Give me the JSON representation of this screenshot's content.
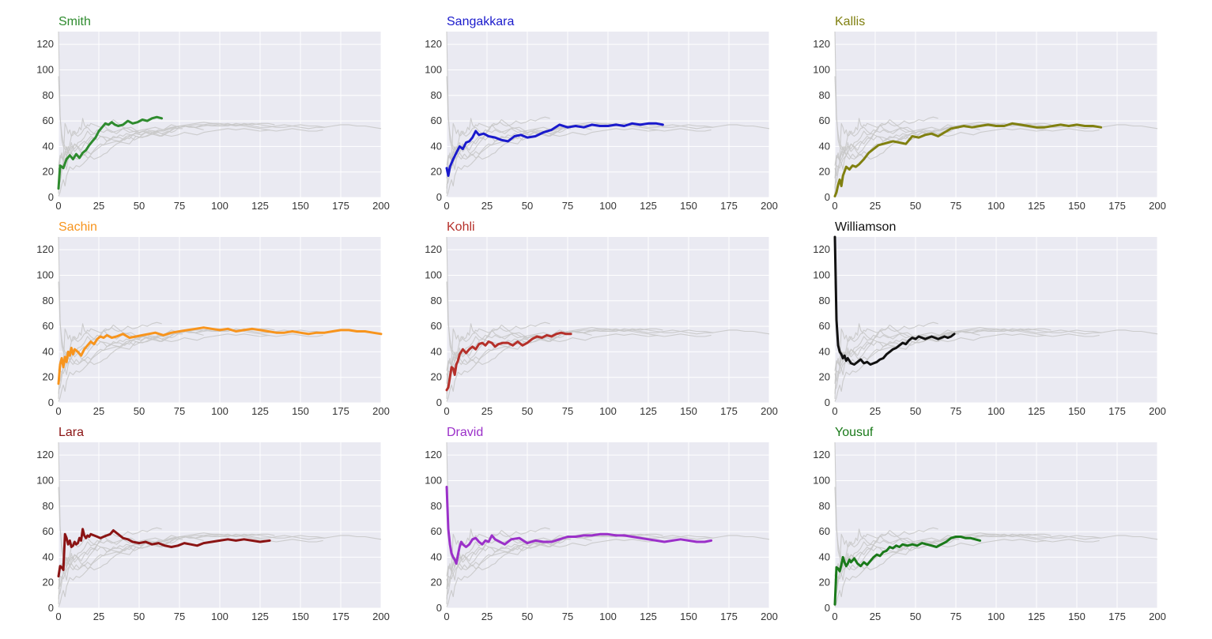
{
  "chart_data": {
    "type": "line",
    "layout": "3x3 small multiples",
    "xlim": [
      0,
      200
    ],
    "ylim": [
      0,
      130
    ],
    "xticks": [
      0,
      25,
      50,
      75,
      100,
      125,
      150,
      175,
      200
    ],
    "yticks": [
      0,
      20,
      40,
      60,
      80,
      100,
      120
    ],
    "grid": true,
    "background_series_color": "#c8c8c8",
    "panels": [
      {
        "name": "Smith",
        "color": "#2e8b2e",
        "x": [
          0,
          1,
          2,
          3,
          5,
          7,
          9,
          11,
          13,
          15,
          17,
          19,
          21,
          23,
          25,
          27,
          29,
          31,
          33,
          35,
          37,
          40,
          43,
          46,
          49,
          52,
          55,
          58,
          61,
          64
        ],
        "y": [
          7,
          25,
          24,
          23,
          30,
          33,
          30,
          34,
          31,
          35,
          37,
          41,
          44,
          47,
          52,
          55,
          58,
          57,
          59,
          57,
          56,
          57,
          60,
          58,
          59,
          61,
          60,
          62,
          63,
          62
        ]
      },
      {
        "name": "Sangakkara",
        "color": "#1a1acc",
        "x": [
          0,
          1,
          2,
          4,
          6,
          8,
          10,
          12,
          14,
          16,
          18,
          20,
          23,
          26,
          30,
          34,
          38,
          42,
          46,
          50,
          55,
          60,
          65,
          70,
          75,
          80,
          85,
          90,
          95,
          100,
          105,
          110,
          115,
          120,
          125,
          130,
          134
        ],
        "y": [
          23,
          17,
          24,
          30,
          35,
          40,
          38,
          43,
          44,
          47,
          52,
          49,
          50,
          48,
          47,
          45,
          44,
          48,
          49,
          47,
          48,
          51,
          53,
          57,
          55,
          56,
          55,
          57,
          56,
          56,
          57,
          56,
          58,
          57,
          58,
          58,
          57
        ]
      },
      {
        "name": "Kallis",
        "color": "#808010",
        "x": [
          0,
          1,
          2,
          3,
          4,
          5,
          7,
          9,
          11,
          13,
          15,
          18,
          21,
          24,
          27,
          30,
          33,
          36,
          40,
          44,
          48,
          52,
          56,
          60,
          64,
          68,
          72,
          76,
          80,
          85,
          90,
          95,
          100,
          105,
          110,
          115,
          120,
          125,
          130,
          135,
          140,
          145,
          150,
          155,
          160,
          165
        ],
        "y": [
          1,
          4,
          10,
          14,
          9,
          17,
          24,
          22,
          25,
          24,
          26,
          30,
          35,
          38,
          41,
          42,
          43,
          44,
          43,
          42,
          48,
          47,
          49,
          50,
          48,
          51,
          54,
          55,
          56,
          55,
          56,
          57,
          56,
          56,
          58,
          57,
          56,
          55,
          55,
          56,
          57,
          56,
          57,
          56,
          56,
          55
        ]
      },
      {
        "name": "Sachin",
        "color": "#f7941d",
        "x": [
          0,
          1,
          2,
          3,
          4,
          5,
          6,
          7,
          8,
          9,
          10,
          12,
          14,
          16,
          18,
          20,
          22,
          24,
          26,
          28,
          30,
          33,
          36,
          40,
          44,
          48,
          52,
          56,
          60,
          65,
          70,
          75,
          80,
          85,
          90,
          95,
          100,
          105,
          110,
          115,
          120,
          125,
          130,
          135,
          140,
          145,
          150,
          155,
          160,
          165,
          170,
          175,
          180,
          185,
          190,
          195,
          200
        ],
        "y": [
          15,
          30,
          35,
          28,
          36,
          32,
          40,
          37,
          43,
          38,
          42,
          40,
          37,
          42,
          45,
          48,
          46,
          50,
          52,
          51,
          53,
          51,
          52,
          54,
          51,
          52,
          53,
          54,
          55,
          53,
          55,
          56,
          57,
          58,
          59,
          58,
          57,
          58,
          56,
          57,
          58,
          57,
          56,
          55,
          55,
          56,
          55,
          54,
          55,
          55,
          56,
          57,
          57,
          56,
          56,
          55,
          54
        ]
      },
      {
        "name": "Kohli",
        "color": "#b5302a",
        "x": [
          0,
          1,
          2,
          3,
          4,
          5,
          6,
          7,
          8,
          9,
          10,
          12,
          14,
          16,
          18,
          20,
          22,
          24,
          26,
          28,
          30,
          32,
          35,
          38,
          41,
          44,
          47,
          50,
          53,
          56,
          59,
          62,
          65,
          68,
          71,
          74,
          77
        ],
        "y": [
          10,
          12,
          20,
          28,
          27,
          22,
          30,
          33,
          38,
          40,
          42,
          39,
          42,
          44,
          42,
          46,
          47,
          45,
          48,
          47,
          44,
          46,
          47,
          47,
          45,
          48,
          45,
          47,
          50,
          52,
          51,
          53,
          52,
          54,
          55,
          54,
          54
        ]
      },
      {
        "name": "Williamson",
        "color": "#111111",
        "x": [
          0,
          1,
          2,
          3,
          4,
          5,
          6,
          7,
          8,
          10,
          12,
          14,
          16,
          18,
          20,
          22,
          24,
          26,
          28,
          30,
          32,
          34,
          36,
          38,
          40,
          42,
          44,
          46,
          48,
          50,
          52,
          54,
          56,
          58,
          60,
          62,
          64,
          66,
          68,
          70,
          72,
          74
        ],
        "y": [
          130,
          65,
          45,
          40,
          38,
          35,
          37,
          33,
          35,
          31,
          30,
          32,
          34,
          31,
          32,
          30,
          31,
          32,
          34,
          35,
          38,
          40,
          42,
          43,
          45,
          47,
          46,
          49,
          51,
          50,
          52,
          51,
          50,
          51,
          52,
          51,
          50,
          51,
          52,
          51,
          52,
          54
        ]
      },
      {
        "name": "Lara",
        "color": "#8b1414",
        "x": [
          0,
          1,
          2,
          3,
          4,
          5,
          6,
          7,
          8,
          9,
          10,
          11,
          12,
          13,
          14,
          15,
          16,
          17,
          18,
          19,
          20,
          22,
          24,
          26,
          28,
          30,
          32,
          34,
          36,
          38,
          40,
          43,
          46,
          50,
          54,
          58,
          62,
          66,
          70,
          74,
          78,
          82,
          86,
          90,
          95,
          100,
          105,
          110,
          115,
          120,
          125,
          131
        ],
        "y": [
          25,
          33,
          32,
          30,
          58,
          55,
          50,
          53,
          48,
          49,
          52,
          50,
          51,
          55,
          53,
          62,
          57,
          55,
          57,
          56,
          58,
          57,
          56,
          55,
          56,
          57,
          58,
          61,
          59,
          57,
          55,
          54,
          52,
          51,
          52,
          50,
          51,
          49,
          48,
          49,
          51,
          50,
          49,
          51,
          52,
          53,
          54,
          53,
          54,
          53,
          52,
          53
        ]
      },
      {
        "name": "Dravid",
        "color": "#9b30c9",
        "x": [
          0,
          1,
          2,
          3,
          4,
          5,
          6,
          7,
          8,
          9,
          10,
          12,
          14,
          16,
          18,
          20,
          22,
          24,
          26,
          28,
          30,
          33,
          36,
          40,
          45,
          50,
          55,
          60,
          65,
          70,
          75,
          80,
          85,
          90,
          95,
          100,
          105,
          110,
          115,
          120,
          125,
          130,
          135,
          140,
          145,
          150,
          155,
          160,
          164
        ],
        "y": [
          95,
          62,
          50,
          43,
          40,
          38,
          35,
          42,
          48,
          52,
          50,
          48,
          50,
          54,
          55,
          52,
          50,
          53,
          52,
          57,
          54,
          52,
          50,
          54,
          55,
          51,
          53,
          52,
          52,
          54,
          56,
          56,
          57,
          57,
          58,
          58,
          57,
          57,
          56,
          55,
          54,
          53,
          52,
          53,
          54,
          53,
          52,
          52,
          53
        ]
      },
      {
        "name": "Yousuf",
        "color": "#1a7a1a",
        "x": [
          0,
          1,
          2,
          3,
          4,
          5,
          6,
          7,
          8,
          9,
          10,
          12,
          14,
          16,
          18,
          20,
          22,
          24,
          26,
          28,
          30,
          32,
          34,
          36,
          38,
          40,
          42,
          45,
          48,
          51,
          54,
          57,
          60,
          63,
          66,
          69,
          72,
          75,
          78,
          81,
          84,
          87,
          90
        ],
        "y": [
          3,
          32,
          31,
          29,
          34,
          40,
          36,
          33,
          35,
          38,
          36,
          39,
          35,
          33,
          36,
          34,
          37,
          40,
          42,
          41,
          44,
          45,
          48,
          47,
          49,
          48,
          50,
          49,
          50,
          49,
          51,
          50,
          49,
          48,
          50,
          52,
          55,
          56,
          56,
          55,
          55,
          54,
          53
        ]
      }
    ]
  }
}
